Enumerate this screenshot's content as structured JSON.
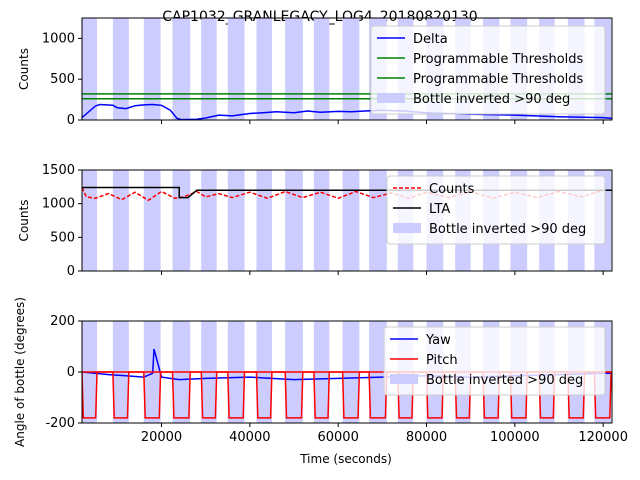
{
  "title": "CAP1032_GRANLEGACY_LOG4_20180820130",
  "xlabel": "Time (seconds)",
  "x_ticks": [
    20000,
    40000,
    60000,
    80000,
    100000,
    120000
  ],
  "x_tick_labels": [
    "20000",
    "40000",
    "60000",
    "80000",
    "100000",
    "120000"
  ],
  "xlim": [
    2000,
    122000
  ],
  "inverted_bands": [
    [
      2000,
      5400
    ],
    [
      9000,
      12600
    ],
    [
      16000,
      19800
    ],
    [
      22500,
      26500
    ],
    [
      29000,
      32500
    ],
    [
      35000,
      38800
    ],
    [
      41500,
      45000
    ],
    [
      48000,
      52000
    ],
    [
      54500,
      58000
    ],
    [
      61000,
      64800
    ],
    [
      67000,
      71000
    ],
    [
      73500,
      77000
    ],
    [
      80000,
      83800
    ],
    [
      86500,
      90000
    ],
    [
      92800,
      96500
    ],
    [
      99000,
      102800
    ],
    [
      105500,
      109000
    ],
    [
      112000,
      115800
    ],
    [
      118000,
      121800
    ]
  ],
  "colors": {
    "delta": "#0000ff",
    "threshold": "#008000",
    "counts": "#ff0000",
    "lta": "#000000",
    "yaw": "#0000ff",
    "pitch": "#ff0000",
    "band": "#ccccff"
  },
  "chart_data": [
    {
      "type": "line",
      "panel": "top",
      "ylabel": "Counts",
      "ylim": [
        0,
        1250
      ],
      "y_ticks": [
        0,
        500,
        1000
      ],
      "legend_placement": "top-right",
      "legend": [
        "Delta",
        "Programmable Thresholds",
        "Programmable Thresholds",
        "Bottle inverted >90 deg"
      ],
      "series": [
        {
          "name": "Delta",
          "x": [
            2000,
            5000,
            6000,
            9000,
            10000,
            12000,
            14000,
            16000,
            18000,
            20000,
            22000,
            23500,
            24500,
            28000,
            30000,
            33000,
            36000,
            40000,
            43000,
            46000,
            50000,
            53000,
            56000,
            60000,
            63000,
            66000,
            70000,
            75000,
            80000,
            90000,
            100000,
            110000,
            120000,
            122000
          ],
          "y": [
            30,
            170,
            190,
            180,
            150,
            140,
            175,
            185,
            190,
            180,
            120,
            20,
            5,
            10,
            25,
            60,
            50,
            80,
            90,
            100,
            90,
            110,
            95,
            105,
            100,
            110,
            120,
            110,
            90,
            70,
            60,
            40,
            30,
            20
          ]
        },
        {
          "name": "Programmable Thresholds",
          "x": [
            2000,
            122000
          ],
          "y": [
            320,
            320
          ]
        },
        {
          "name": "Programmable Thresholds",
          "x": [
            2000,
            122000
          ],
          "y": [
            260,
            260
          ]
        }
      ]
    },
    {
      "type": "line",
      "panel": "middle",
      "ylabel": "Counts",
      "ylim": [
        0,
        1500
      ],
      "y_ticks": [
        0,
        500,
        1000,
        1500
      ],
      "legend_placement": "top-right",
      "legend": [
        "Counts",
        "LTA",
        "Bottle inverted >90 deg"
      ],
      "series": [
        {
          "name": "Counts",
          "x": [
            2000,
            3000,
            5000,
            8000,
            11000,
            14000,
            17000,
            20000,
            23000,
            25000,
            28000,
            30000,
            33000,
            36000,
            40000,
            44000,
            48000,
            52000,
            56000,
            60000,
            64000,
            68000,
            72000,
            76000,
            80000,
            85000,
            90000,
            95000,
            100000,
            105000,
            110000,
            115000,
            120000,
            122000
          ],
          "y": [
            1240,
            1100,
            1080,
            1150,
            1060,
            1170,
            1050,
            1180,
            1080,
            1100,
            1180,
            1100,
            1150,
            1090,
            1170,
            1080,
            1180,
            1090,
            1170,
            1080,
            1180,
            1090,
            1160,
            1080,
            1170,
            1090,
            1180,
            1080,
            1170,
            1090,
            1180,
            1100,
            1200,
            1200
          ]
        },
        {
          "name": "LTA",
          "x": [
            2000,
            24000,
            24000,
            26000,
            28000,
            122000
          ],
          "y": [
            1240,
            1240,
            1090,
            1090,
            1200,
            1200
          ]
        }
      ]
    },
    {
      "type": "line",
      "panel": "bottom",
      "ylabel": "Angle of bottle (degrees)",
      "ylim": [
        -200,
        200
      ],
      "y_ticks": [
        -200,
        0,
        200
      ],
      "legend_placement": "top-right",
      "legend": [
        "Yaw",
        "Pitch",
        "Bottle inverted >90 deg"
      ],
      "series": [
        {
          "name": "Yaw",
          "x": [
            2000,
            5000,
            8000,
            12000,
            16000,
            18000,
            18300,
            20000,
            24000,
            30000,
            40000,
            50000,
            60000,
            70000,
            80000,
            90000,
            100000,
            110000,
            120000,
            122000
          ],
          "y": [
            0,
            -5,
            -10,
            -15,
            -20,
            -5,
            90,
            -20,
            -30,
            -25,
            -20,
            -30,
            -25,
            -20,
            -15,
            -20,
            -15,
            -10,
            -5,
            -5
          ]
        },
        {
          "name": "Pitch",
          "x": [
            2000,
            122000
          ],
          "y": [
            0,
            0
          ]
        }
      ]
    }
  ]
}
